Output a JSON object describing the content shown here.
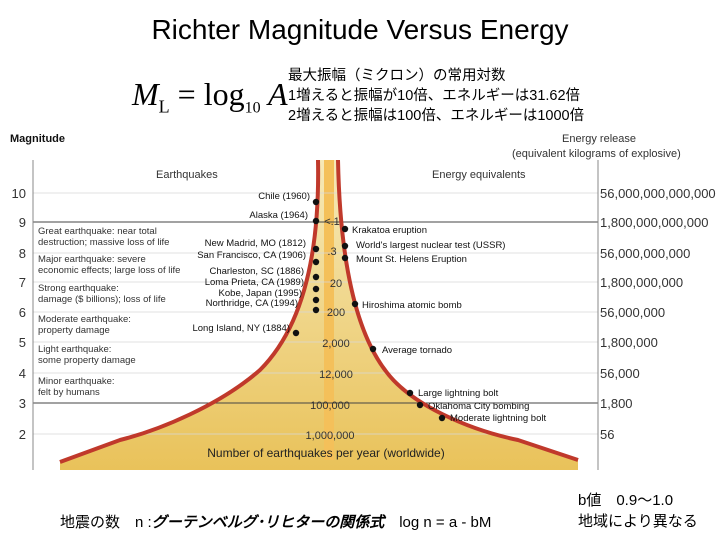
{
  "title": "Richter Magnitude Versus Energy",
  "formula": {
    "text": "M",
    "sub": "L",
    "rest": " = log",
    "sub2": "10",
    "var": " A"
  },
  "notes": [
    "最大振幅（ミクロン）の常用対数",
    "1増えると振幅が10倍、エネルギーは31.62倍",
    "2増えると振幅は100倍、エネルギーは1000倍"
  ],
  "axis_left_title": "Magnitude",
  "axis_right_title": "Energy release",
  "axis_right_subtitle": "(equivalent kilograms of explosive)",
  "header_left": "Earthquakes",
  "header_right": "Energy equivalents",
  "magnitudes": [
    "10",
    "9",
    "8",
    "7",
    "6",
    "5",
    "4",
    "3",
    "2"
  ],
  "energies": [
    "56,000,000,000,000",
    "1,800,000,000,000",
    "56,000,000,000",
    "1,800,000,000",
    "56,000,000",
    "1,800,000",
    "56,000",
    "1,800",
    "56"
  ],
  "descriptions": [
    [
      "Great earthquake: near total",
      "destruction; massive loss of life"
    ],
    [
      "Major earthquake: severe",
      "economic effects; large loss of life"
    ],
    [
      "Strong earthquake:",
      "damage ($ billions); loss of life"
    ],
    [
      "Moderate earthquake:",
      "property damage"
    ],
    [
      "Light earthquake:",
      "some property damage"
    ],
    [
      "Minor earthquake:",
      "felt by humans"
    ]
  ],
  "counts": [
    "<.1",
    ".3",
    "20",
    "200",
    "2,000",
    "12,000",
    "100,000",
    "1,000,000"
  ],
  "earthquakes": [
    "Chile (1960)",
    "Alaska (1964)",
    "New Madrid, MO (1812)",
    "San Francisco, CA (1906)",
    "Charleston, SC (1886)",
    "Loma Prieta, CA (1989)",
    "Kobe, Japan (1995)",
    "Northridge, CA (1994)",
    "Long Island, NY (1884)"
  ],
  "equivalents": [
    "Krakatoa eruption",
    "World's largest nuclear test (USSR)",
    "Mount St. Helens Eruption",
    "Hiroshima atomic bomb",
    "Average tornado",
    "Large lightning bolt",
    "Oklahoma City bombing",
    "Moderate lightning bolt"
  ],
  "footer_label": "Number of earthquakes per year (worldwide)",
  "bottom_left": {
    "prefix": "地震の数　n :",
    "relation": "グーテンベルグ･リヒターの関係式",
    "formula": "　log n = a - bM"
  },
  "bottom_right": {
    "line1": "b値　0.9～1.0",
    "line2": "地域により異なる"
  },
  "colors": {
    "fill_top": "#f6e9b8",
    "fill_bottom": "#e9c25a",
    "curve": "#c0392b",
    "stem": "#f4c05a",
    "dot": "#111111"
  }
}
